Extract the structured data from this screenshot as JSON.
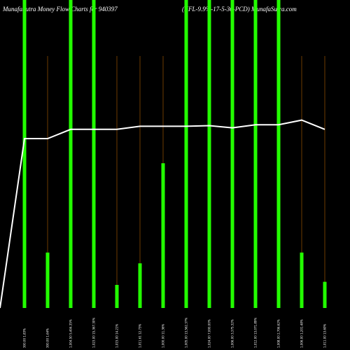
{
  "header": {
    "left_title": "MunafaSutra  Money Flow  Charts for 940397",
    "right_title": "(IIFL-9.9%-17-5-30-PCD) MunafaSutra.com"
  },
  "colors": {
    "background": "#000000",
    "bar": "#22ff00",
    "line": "#ffffff",
    "guide": "#8a4a00",
    "text": "#ffffff"
  },
  "chart_data": {
    "type": "bar",
    "title": "MunafaSutra  Money Flow  Charts for 940397",
    "xlabel": "",
    "ylabel": "",
    "ylim": [
      0,
      100
    ],
    "grid": false,
    "legend": "none",
    "categories": [
      "300.00 1.83%",
      "300.00 1.64%",
      "1,004.50 5,404.35%",
      "1,023.00 15,367.30%",
      "1,015.00 14.21%",
      "1,011.61 12.73%",
      "1,000.00 11.36%",
      "1,005.00 13,562.37%",
      "1,024.00 7,000.00%",
      "1,006.00 3,375.32%",
      "1,012.00 13,071.89%",
      "1,008.00 2,706.62%",
      "1,006.00 1,201.48%",
      "1,011.00 13.60%"
    ],
    "series": [
      {
        "type": "bar",
        "values": [
          100,
          18,
          100,
          100,
          7.5,
          14.5,
          47,
          100,
          100,
          100,
          100,
          100,
          18,
          8.5
        ]
      },
      {
        "type": "line",
        "values": [
          55,
          55,
          58,
          58,
          58,
          59,
          59,
          59,
          59.2,
          58.5,
          59.5,
          59.5,
          61,
          58
        ]
      }
    ],
    "line_start_value": 0
  }
}
